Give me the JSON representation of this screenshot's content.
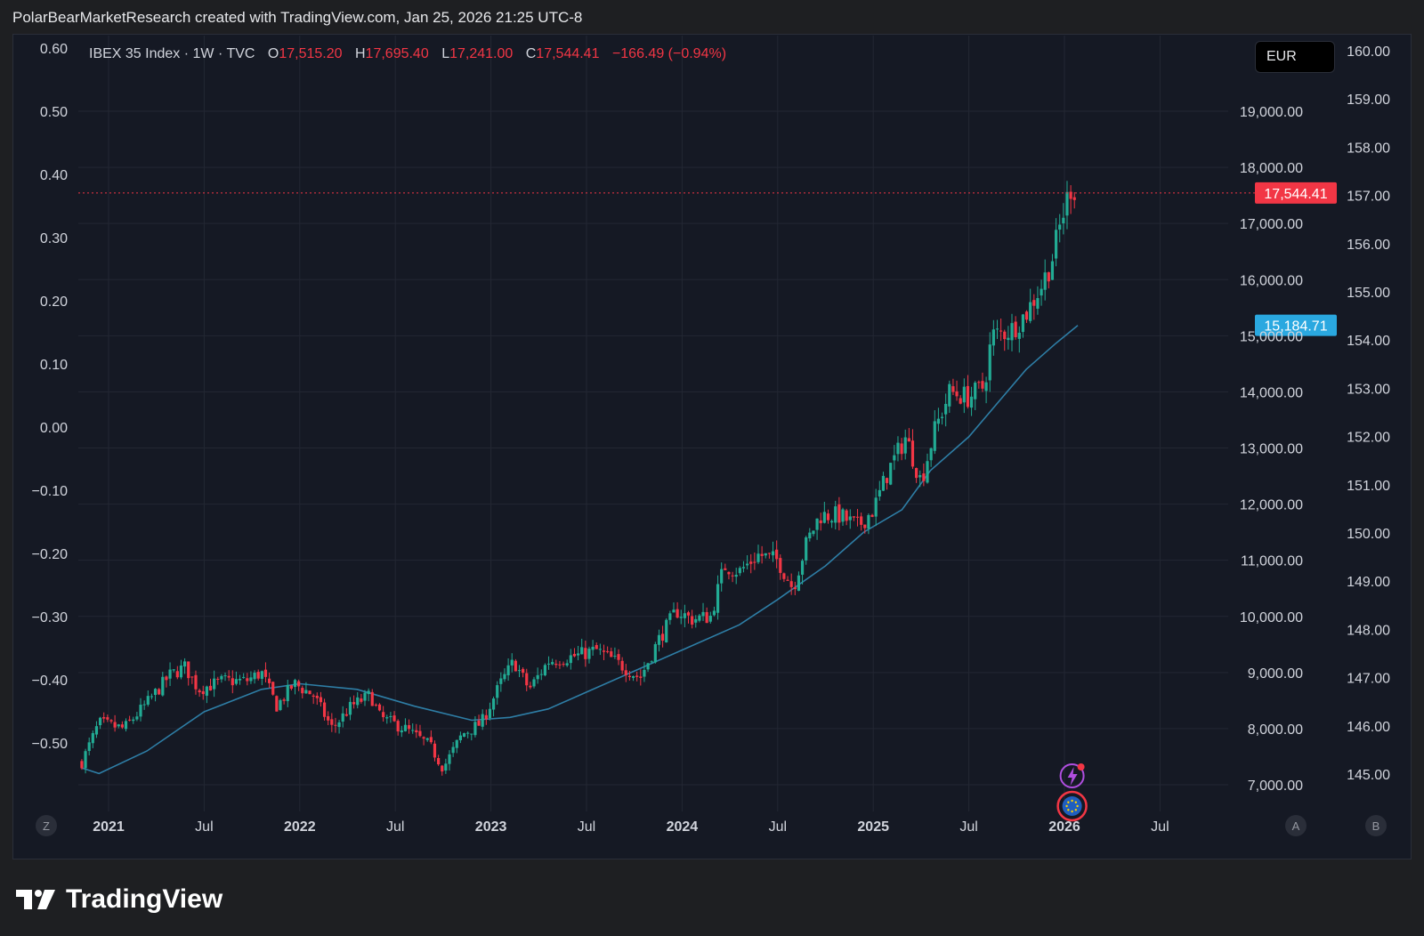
{
  "header": {
    "caption": "PolarBearMarketResearch created with TradingView.com, Jan 25, 2026 21:25 UTC-8"
  },
  "legend": {
    "symbol": "IBEX 35 Index · 1W · TVC",
    "open": "17,515.20",
    "high": "17,695.40",
    "low": "17,241.00",
    "close": "17,544.41",
    "change": "−166.49 (−0.94%)"
  },
  "currency_button": "EUR",
  "scale_buttons": {
    "left": "Z",
    "a": "A",
    "b": "B"
  },
  "brand": {
    "name": "TradingView"
  },
  "colors": {
    "up": "#22ab94",
    "down": "#f23645",
    "ma": "#2e7ea6",
    "last_price_label": "#f23645",
    "ma_label": "#2aa8e0",
    "background": "#151924",
    "grid": "#232733"
  },
  "chart_data": {
    "type": "candlestick",
    "title": "IBEX 35 Index · 1W · TVC",
    "series_mode": "approximate_weekly_closes",
    "price_axis": {
      "range": [
        6800,
        20000
      ],
      "ticks": [
        7000,
        8000,
        9000,
        10000,
        11000,
        12000,
        13000,
        14000,
        15000,
        16000,
        17000,
        18000,
        19000
      ],
      "tick_labels": [
        "7,000.00",
        "8,000.00",
        "9,000.00",
        "10,000.00",
        "11,000.00",
        "12,000.00",
        "13,000.00",
        "14,000.00",
        "15,000.00",
        "16,000.00",
        "17,000.00",
        "18,000.00",
        "19,000.00"
      ]
    },
    "left_axis": {
      "labels": [
        "0.60",
        "0.50",
        "0.40",
        "0.30",
        "0.20",
        "0.10",
        "0.00",
        "−0.10",
        "−0.20",
        "−0.30",
        "−0.40",
        "−0.50"
      ]
    },
    "right_axis": {
      "labels": [
        "160.00",
        "159.00",
        "158.00",
        "157.00",
        "156.00",
        "155.00",
        "154.00",
        "153.00",
        "152.00",
        "151.00",
        "150.00",
        "149.00",
        "148.00",
        "147.00",
        "146.00",
        "145.00"
      ]
    },
    "time_axis": {
      "start_year": 2020.85,
      "end_year": 2026.85,
      "labels": [
        {
          "t": 2021.0,
          "label": "2021",
          "bold": true
        },
        {
          "t": 2021.5,
          "label": "Jul",
          "bold": false
        },
        {
          "t": 2022.0,
          "label": "2022",
          "bold": true
        },
        {
          "t": 2022.5,
          "label": "Jul",
          "bold": false
        },
        {
          "t": 2023.0,
          "label": "2023",
          "bold": true
        },
        {
          "t": 2023.5,
          "label": "Jul",
          "bold": false
        },
        {
          "t": 2024.0,
          "label": "2024",
          "bold": true
        },
        {
          "t": 2024.5,
          "label": "Jul",
          "bold": false
        },
        {
          "t": 2025.0,
          "label": "2025",
          "bold": true
        },
        {
          "t": 2025.5,
          "label": "Jul",
          "bold": false
        },
        {
          "t": 2026.0,
          "label": "2026",
          "bold": true
        },
        {
          "t": 2026.5,
          "label": "Jul",
          "bold": false
        }
      ]
    },
    "anchors": [
      [
        2020.86,
        7400
      ],
      [
        2020.95,
        8100
      ],
      [
        2021.08,
        8000
      ],
      [
        2021.2,
        8450
      ],
      [
        2021.32,
        8950
      ],
      [
        2021.4,
        9100
      ],
      [
        2021.47,
        8700
      ],
      [
        2021.6,
        8850
      ],
      [
        2021.72,
        8850
      ],
      [
        2021.8,
        9000
      ],
      [
        2021.88,
        8400
      ],
      [
        2021.97,
        8800
      ],
      [
        2022.07,
        8600
      ],
      [
        2022.17,
        8000
      ],
      [
        2022.27,
        8400
      ],
      [
        2022.37,
        8600
      ],
      [
        2022.42,
        8200
      ],
      [
        2022.55,
        8000
      ],
      [
        2022.68,
        7700
      ],
      [
        2022.75,
        7300
      ],
      [
        2022.85,
        7900
      ],
      [
        2022.95,
        8100
      ],
      [
        2023.05,
        8800
      ],
      [
        2023.12,
        9200
      ],
      [
        2023.2,
        8700
      ],
      [
        2023.3,
        9200
      ],
      [
        2023.45,
        9300
      ],
      [
        2023.55,
        9400
      ],
      [
        2023.65,
        9200
      ],
      [
        2023.78,
        8900
      ],
      [
        2023.88,
        9600
      ],
      [
        2023.97,
        10100
      ],
      [
        2024.05,
        9950
      ],
      [
        2024.15,
        10000
      ],
      [
        2024.22,
        10900
      ],
      [
        2024.3,
        10800
      ],
      [
        2024.4,
        11100
      ],
      [
        2024.5,
        11000
      ],
      [
        2024.58,
        10500
      ],
      [
        2024.65,
        11300
      ],
      [
        2024.72,
        11800
      ],
      [
        2024.82,
        11800
      ],
      [
        2024.92,
        11600
      ],
      [
        2025.0,
        11900
      ],
      [
        2025.08,
        12600
      ],
      [
        2025.17,
        13200
      ],
      [
        2025.25,
        12400
      ],
      [
        2025.32,
        13300
      ],
      [
        2025.4,
        14000
      ],
      [
        2025.5,
        13900
      ],
      [
        2025.58,
        14100
      ],
      [
        2025.62,
        15000
      ],
      [
        2025.72,
        15100
      ],
      [
        2025.8,
        15400
      ],
      [
        2025.88,
        15900
      ],
      [
        2025.93,
        16300
      ],
      [
        2025.98,
        17000
      ],
      [
        2026.03,
        17650
      ],
      [
        2026.07,
        17544
      ]
    ],
    "moving_average": [
      [
        2020.86,
        7300
      ],
      [
        2020.95,
        7200
      ],
      [
        2021.2,
        7600
      ],
      [
        2021.5,
        8300
      ],
      [
        2021.8,
        8700
      ],
      [
        2022.0,
        8800
      ],
      [
        2022.3,
        8700
      ],
      [
        2022.6,
        8400
      ],
      [
        2022.9,
        8150
      ],
      [
        2023.1,
        8200
      ],
      [
        2023.3,
        8350
      ],
      [
        2023.5,
        8650
      ],
      [
        2023.8,
        9100
      ],
      [
        2024.0,
        9400
      ],
      [
        2024.3,
        9850
      ],
      [
        2024.5,
        10300
      ],
      [
        2024.75,
        10900
      ],
      [
        2024.95,
        11500
      ],
      [
        2025.15,
        11900
      ],
      [
        2025.3,
        12600
      ],
      [
        2025.5,
        13200
      ],
      [
        2025.65,
        13800
      ],
      [
        2025.8,
        14400
      ],
      [
        2025.95,
        14850
      ],
      [
        2026.07,
        15185
      ]
    ],
    "last_price": 17544.41,
    "last_price_label": "17,544.41",
    "ma_value": 15184.71,
    "ma_label": "15,184.71"
  }
}
